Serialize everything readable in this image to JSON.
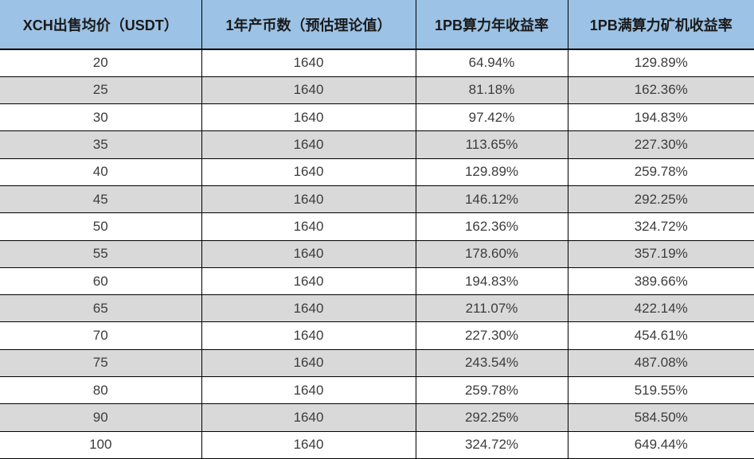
{
  "chart_data": {
    "type": "table",
    "columns": [
      "XCH出售均价（USDT）",
      "1年产币数（预估理论值）",
      "1PB算力年收益率",
      "1PB满算力矿机收益率"
    ],
    "rows": [
      [
        "20",
        "1640",
        "64.94%",
        "129.89%"
      ],
      [
        "25",
        "1640",
        "81.18%",
        "162.36%"
      ],
      [
        "30",
        "1640",
        "97.42%",
        "194.83%"
      ],
      [
        "35",
        "1640",
        "113.65%",
        "227.30%"
      ],
      [
        "40",
        "1640",
        "129.89%",
        "259.78%"
      ],
      [
        "45",
        "1640",
        "146.12%",
        "292.25%"
      ],
      [
        "50",
        "1640",
        "162.36%",
        "324.72%"
      ],
      [
        "55",
        "1640",
        "178.60%",
        "357.19%"
      ],
      [
        "60",
        "1640",
        "194.83%",
        "389.66%"
      ],
      [
        "65",
        "1640",
        "211.07%",
        "422.14%"
      ],
      [
        "70",
        "1640",
        "227.30%",
        "454.61%"
      ],
      [
        "75",
        "1640",
        "243.54%",
        "487.08%"
      ],
      [
        "80",
        "1640",
        "259.78%",
        "519.55%"
      ],
      [
        "90",
        "1640",
        "292.25%",
        "584.50%"
      ],
      [
        "100",
        "1640",
        "324.72%",
        "649.44%"
      ]
    ],
    "layout": {
      "grid": true,
      "striped": true,
      "header_position": "top"
    }
  },
  "colors": {
    "header_bg": "#9CC2E5",
    "row_bg": "#FFFFFF",
    "row_alt_bg": "#D9D9D9",
    "border": "#000000",
    "header_text": "#1A1A1A",
    "cell_text": "#3C3C3C"
  }
}
